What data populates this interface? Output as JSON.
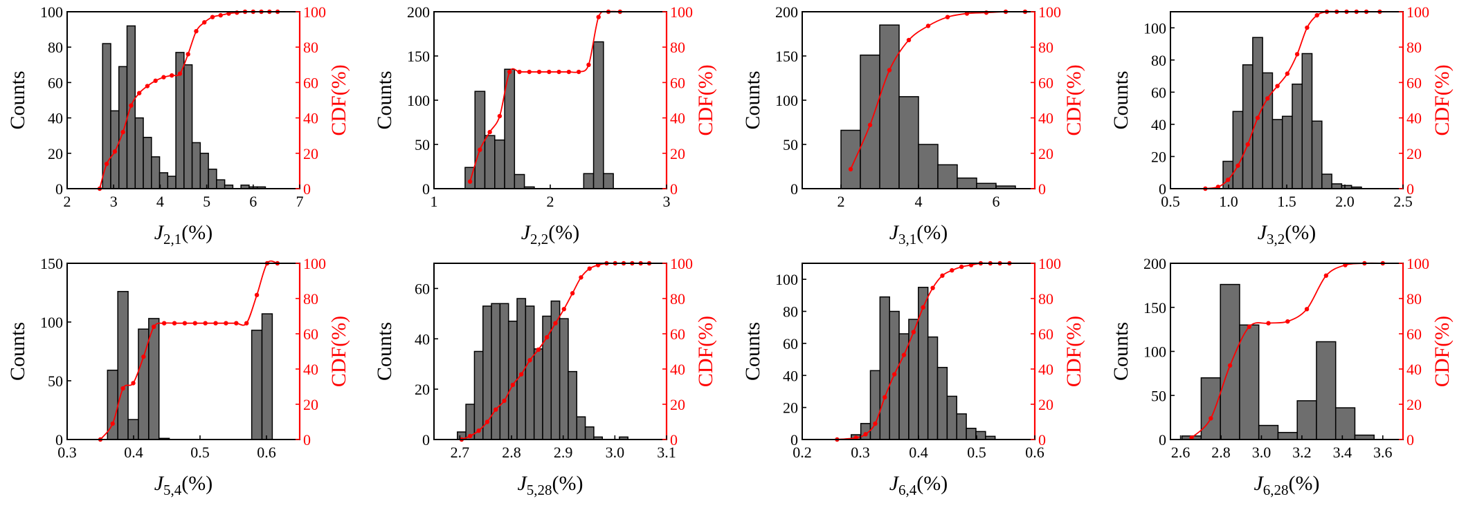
{
  "colors": {
    "bar_fill": "#6e6e6e",
    "bar_stroke": "#000000",
    "cdf": "#ff0000",
    "axis": "#000000"
  },
  "chart_data": [
    {
      "type": "bar",
      "ylabel": "Counts",
      "y2label": "CDF(%)",
      "xlabel": {
        "main": "J",
        "sub": "2,1",
        "unit": "(%)"
      },
      "xlim": [
        2,
        7
      ],
      "xticks": [
        2,
        3,
        4,
        5,
        6,
        7
      ],
      "xtick_labels": [
        "2",
        "3",
        "4",
        "5",
        "6",
        "7"
      ],
      "ylim": [
        0,
        100
      ],
      "yticks": [
        0,
        20,
        40,
        60,
        80,
        100
      ],
      "ytick_labels": [
        "0",
        "20",
        "40",
        "60",
        "80",
        "100"
      ],
      "y2lim": [
        0,
        100
      ],
      "y2ticks": [
        0,
        20,
        40,
        60,
        80,
        100
      ],
      "y2tick_labels": [
        "0",
        "20",
        "40",
        "60",
        "80",
        "100"
      ],
      "bin_width": 0.175,
      "bins": [
        2.85,
        3.025,
        3.2,
        3.375,
        3.55,
        3.725,
        3.9,
        4.075,
        4.25,
        4.425,
        4.6,
        4.775,
        4.95,
        5.125,
        5.3,
        5.475,
        5.65,
        5.825,
        6.0,
        6.175,
        6.35,
        6.525
      ],
      "counts": [
        82,
        44,
        69,
        92,
        40,
        29,
        18,
        9,
        7,
        77,
        70,
        26,
        20,
        11,
        5,
        2,
        0,
        2,
        1,
        1,
        0,
        0
      ],
      "cdf_x": [
        2.7,
        2.85,
        3.025,
        3.2,
        3.375,
        3.55,
        3.725,
        3.9,
        4.075,
        4.25,
        4.425,
        4.6,
        4.775,
        4.95,
        5.125,
        5.3,
        5.475,
        5.65,
        5.825,
        6.0,
        6.175,
        6.35,
        6.525
      ],
      "cdf_y": [
        0,
        14,
        21,
        32,
        47,
        54,
        58,
        61,
        63,
        64,
        65,
        76,
        89,
        94,
        97,
        98,
        99,
        99.5,
        100,
        100,
        100,
        100,
        100
      ]
    },
    {
      "type": "bar",
      "ylabel": "Counts",
      "y2label": "CDF(%)",
      "xlabel": {
        "main": "J",
        "sub": "2,2",
        "unit": "(%)"
      },
      "xlim": [
        1,
        3
      ],
      "xticks": [
        1,
        2,
        3
      ],
      "xtick_labels": [
        "1",
        "2",
        "3"
      ],
      "ylim": [
        0,
        200
      ],
      "yticks": [
        0,
        50,
        100,
        150,
        200
      ],
      "ytick_labels": [
        "0",
        "50",
        "100",
        "150",
        "200"
      ],
      "y2lim": [
        0,
        100
      ],
      "y2ticks": [
        0,
        20,
        40,
        60,
        80,
        100
      ],
      "y2tick_labels": [
        "0",
        "20",
        "40",
        "60",
        "80",
        "100"
      ],
      "bin_width": 0.085,
      "bins": [
        1.31,
        1.395,
        1.48,
        1.565,
        1.65,
        1.735,
        1.82,
        1.905,
        1.99,
        2.075,
        2.16,
        2.245,
        2.33,
        2.415,
        2.5
      ],
      "counts": [
        24,
        110,
        60,
        55,
        135,
        16,
        2,
        0,
        0,
        0,
        0,
        0,
        17,
        166,
        17
      ],
      "cdf_x": [
        1.31,
        1.395,
        1.48,
        1.565,
        1.65,
        1.735,
        1.82,
        1.905,
        1.99,
        2.075,
        2.16,
        2.245,
        2.33,
        2.415,
        2.5,
        2.6
      ],
      "cdf_y": [
        4,
        22,
        32,
        41,
        66,
        66,
        66,
        66,
        66,
        66,
        66,
        66,
        70,
        97,
        100,
        100
      ]
    },
    {
      "type": "bar",
      "ylabel": "Counts",
      "y2label": "CDF(%)",
      "xlabel": {
        "main": "J",
        "sub": "3,1",
        "unit": "(%)"
      },
      "xlim": [
        1,
        7
      ],
      "xticks": [
        2,
        4,
        6
      ],
      "xtick_labels": [
        "2",
        "4",
        "6"
      ],
      "ylim": [
        0,
        200
      ],
      "yticks": [
        0,
        50,
        100,
        150,
        200
      ],
      "ytick_labels": [
        "0",
        "50",
        "100",
        "150",
        "200"
      ],
      "y2lim": [
        0,
        100
      ],
      "y2ticks": [
        0,
        20,
        40,
        60,
        80,
        100
      ],
      "y2tick_labels": [
        "0",
        "20",
        "40",
        "60",
        "80",
        "100"
      ],
      "bin_width": 0.5,
      "bins": [
        2.25,
        2.75,
        3.25,
        3.75,
        4.25,
        4.75,
        5.25,
        5.75,
        6.25
      ],
      "counts": [
        66,
        151,
        185,
        104,
        50,
        27,
        12,
        6,
        3
      ],
      "cdf_x": [
        2.25,
        2.75,
        3.25,
        3.75,
        4.25,
        4.75,
        5.25,
        5.75,
        6.25,
        6.75
      ],
      "cdf_y": [
        11,
        36,
        67,
        84,
        92,
        97,
        99,
        99.5,
        100,
        100
      ]
    },
    {
      "type": "bar",
      "ylabel": "Counts",
      "y2label": "CDF(%)",
      "xlabel": {
        "main": "J",
        "sub": "3,2",
        "unit": "(%)"
      },
      "xlim": [
        0.5,
        2.5
      ],
      "xticks": [
        0.5,
        1.0,
        1.5,
        2.0,
        2.5
      ],
      "xtick_labels": [
        "0.5",
        "1.0",
        "1.5",
        "2.0",
        "2.5"
      ],
      "ylim": [
        0,
        110
      ],
      "yticks": [
        0,
        20,
        40,
        60,
        80,
        100
      ],
      "ytick_labels": [
        "0",
        "20",
        "40",
        "60",
        "80",
        "100"
      ],
      "y2lim": [
        0,
        100
      ],
      "y2ticks": [
        0,
        20,
        40,
        60,
        80,
        100
      ],
      "y2tick_labels": [
        "0",
        "20",
        "40",
        "60",
        "80",
        "100"
      ],
      "bin_width": 0.085,
      "bins": [
        0.91,
        0.995,
        1.08,
        1.165,
        1.25,
        1.335,
        1.42,
        1.505,
        1.59,
        1.675,
        1.76,
        1.845,
        1.93,
        2.015,
        2.1,
        2.185
      ],
      "counts": [
        0,
        17,
        48,
        77,
        94,
        72,
        43,
        45,
        65,
        84,
        42,
        9,
        3,
        2,
        1,
        0
      ],
      "cdf_x": [
        0.8,
        0.91,
        0.995,
        1.08,
        1.165,
        1.25,
        1.335,
        1.42,
        1.505,
        1.59,
        1.675,
        1.76,
        1.845,
        1.93,
        2.015,
        2.1,
        2.185,
        2.3
      ],
      "cdf_y": [
        0,
        1,
        5,
        13,
        25,
        40,
        51,
        58,
        65,
        76,
        91,
        98,
        100,
        100,
        100,
        100,
        100,
        100
      ]
    },
    {
      "type": "bar",
      "ylabel": "Counts",
      "y2label": "CDF(%)",
      "xlabel": {
        "main": "J",
        "sub": "5,4",
        "unit": "(%)"
      },
      "xlim": [
        0.3,
        0.65
      ],
      "xticks": [
        0.3,
        0.4,
        0.5,
        0.6
      ],
      "xtick_labels": [
        "0.3",
        "0.4",
        "0.5",
        "0.6"
      ],
      "ylim": [
        0,
        150
      ],
      "yticks": [
        0,
        50,
        100,
        150
      ],
      "ytick_labels": [
        "0",
        "50",
        "100",
        "150"
      ],
      "y2lim": [
        0,
        100
      ],
      "y2ticks": [
        0,
        20,
        40,
        60,
        80,
        100
      ],
      "y2tick_labels": [
        "0",
        "20",
        "40",
        "60",
        "80",
        "100"
      ],
      "bin_width": 0.0155,
      "bins": [
        0.3685,
        0.384,
        0.3995,
        0.415,
        0.4305,
        0.446,
        0.4615,
        0.477,
        0.4925,
        0.508,
        0.5235,
        0.539,
        0.5545,
        0.57,
        0.5855,
        0.601,
        0.6165
      ],
      "counts": [
        59,
        126,
        17,
        94,
        103,
        1,
        0,
        0,
        0,
        0,
        0,
        0,
        0,
        0,
        93,
        107,
        0
      ],
      "cdf_x": [
        0.35,
        0.3685,
        0.384,
        0.3995,
        0.415,
        0.4305,
        0.446,
        0.4615,
        0.477,
        0.4925,
        0.508,
        0.5235,
        0.539,
        0.5545,
        0.57,
        0.5855,
        0.601,
        0.6165
      ],
      "cdf_y": [
        0,
        9,
        29,
        32,
        47,
        64,
        66,
        66,
        66,
        66,
        66,
        66,
        66,
        66,
        66,
        82,
        100,
        100
      ]
    },
    {
      "type": "bar",
      "ylabel": "Counts",
      "y2label": "CDF(%)",
      "xlabel": {
        "main": "J",
        "sub": "5,28",
        "unit": "(%)"
      },
      "xlim": [
        2.65,
        3.1
      ],
      "xticks": [
        2.7,
        2.8,
        2.9,
        3.0,
        3.1
      ],
      "xtick_labels": [
        "2.7",
        "2.8",
        "2.9",
        "3.0",
        "3.1"
      ],
      "ylim": [
        0,
        70
      ],
      "yticks": [
        0,
        20,
        40,
        60
      ],
      "ytick_labels": [
        "0",
        "20",
        "40",
        "60"
      ],
      "y2lim": [
        0,
        100
      ],
      "y2ticks": [
        0,
        20,
        40,
        60,
        80,
        100
      ],
      "y2tick_labels": [
        "0",
        "20",
        "40",
        "60",
        "80",
        "100"
      ],
      "bin_width": 0.0165,
      "bins": [
        2.7035,
        2.72,
        2.7365,
        2.753,
        2.7695,
        2.786,
        2.8025,
        2.819,
        2.8355,
        2.852,
        2.8685,
        2.885,
        2.9015,
        2.918,
        2.9345,
        2.951,
        2.9675,
        2.984,
        3.0005,
        3.017,
        3.0335,
        3.05,
        3.0665
      ],
      "counts": [
        3,
        14,
        35,
        53,
        54,
        54,
        47,
        56,
        53,
        36,
        49,
        55,
        48,
        27,
        9,
        5,
        1,
        0,
        0,
        1,
        0,
        0,
        0
      ],
      "cdf_x": [
        2.7035,
        2.72,
        2.7365,
        2.753,
        2.7695,
        2.786,
        2.8025,
        2.819,
        2.8355,
        2.852,
        2.8685,
        2.885,
        2.9015,
        2.918,
        2.9345,
        2.951,
        2.9675,
        2.984,
        3.0005,
        3.017,
        3.0335,
        3.05,
        3.0665
      ],
      "cdf_y": [
        0,
        2,
        5,
        10,
        17,
        22,
        31,
        37,
        45,
        51,
        58,
        66,
        74,
        83,
        92,
        97,
        99,
        100,
        100,
        100,
        100,
        100,
        100
      ]
    },
    {
      "type": "bar",
      "ylabel": "Counts",
      "y2label": "CDF(%)",
      "xlabel": {
        "main": "J",
        "sub": "6,4",
        "unit": "(%)"
      },
      "xlim": [
        0.2,
        0.6
      ],
      "xticks": [
        0.2,
        0.3,
        0.4,
        0.5,
        0.6
      ],
      "xtick_labels": [
        "0.2",
        "0.3",
        "0.4",
        "0.5",
        "0.6"
      ],
      "ylim": [
        0,
        110
      ],
      "yticks": [
        0,
        20,
        40,
        60,
        80,
        100
      ],
      "ytick_labels": [
        "0",
        "20",
        "40",
        "60",
        "80",
        "100"
      ],
      "y2lim": [
        0,
        100
      ],
      "y2ticks": [
        0,
        20,
        40,
        60,
        80,
        100
      ],
      "y2tick_labels": [
        "0",
        "20",
        "40",
        "60",
        "80",
        "100"
      ],
      "bin_width": 0.0165,
      "bins": [
        0.2925,
        0.309,
        0.3255,
        0.342,
        0.3585,
        0.375,
        0.3915,
        0.408,
        0.4245,
        0.441,
        0.4575,
        0.474,
        0.4905,
        0.507,
        0.5235,
        0.54,
        0.5565
      ],
      "counts": [
        3,
        10,
        43,
        89,
        80,
        66,
        75,
        95,
        64,
        45,
        27,
        16,
        7,
        5,
        2,
        0,
        0
      ],
      "cdf_x": [
        0.26,
        0.2925,
        0.309,
        0.3255,
        0.342,
        0.3585,
        0.375,
        0.3915,
        0.408,
        0.4245,
        0.441,
        0.4575,
        0.474,
        0.4905,
        0.507,
        0.5235,
        0.54,
        0.5565
      ],
      "cdf_y": [
        0,
        1,
        3,
        9,
        24,
        37,
        48,
        61,
        75,
        86,
        93,
        96,
        98,
        99,
        100,
        100,
        100,
        100
      ]
    },
    {
      "type": "bar",
      "ylabel": "Counts",
      "y2label": "CDF(%)",
      "xlabel": {
        "main": "J",
        "sub": "6,28",
        "unit": "(%)"
      },
      "xlim": [
        2.55,
        3.7
      ],
      "xticks": [
        2.6,
        2.8,
        3.0,
        3.2,
        3.4,
        3.6
      ],
      "xtick_labels": [
        "2.6",
        "2.8",
        "3.0",
        "3.2",
        "3.4",
        "3.6"
      ],
      "ylim": [
        0,
        200
      ],
      "yticks": [
        0,
        50,
        100,
        150,
        200
      ],
      "ytick_labels": [
        "0",
        "50",
        "100",
        "150",
        "200"
      ],
      "y2lim": [
        0,
        100
      ],
      "y2ticks": [
        0,
        20,
        40,
        60,
        80,
        100
      ],
      "y2tick_labels": [
        "0",
        "20",
        "40",
        "60",
        "80",
        "100"
      ],
      "bin_width": 0.095,
      "bins": [
        2.6545,
        2.7495,
        2.8445,
        2.9395,
        3.0345,
        3.1295,
        3.2245,
        3.3195,
        3.4145,
        3.5095
      ],
      "counts": [
        4,
        70,
        176,
        130,
        16,
        8,
        44,
        111,
        36,
        5
      ],
      "cdf_x": [
        2.6545,
        2.7495,
        2.8445,
        2.9395,
        3.0345,
        3.1295,
        3.2245,
        3.3195,
        3.4145,
        3.5095,
        3.6
      ],
      "cdf_y": [
        1,
        12,
        42,
        64,
        66,
        67,
        74,
        93,
        99,
        100,
        100
      ]
    }
  ]
}
